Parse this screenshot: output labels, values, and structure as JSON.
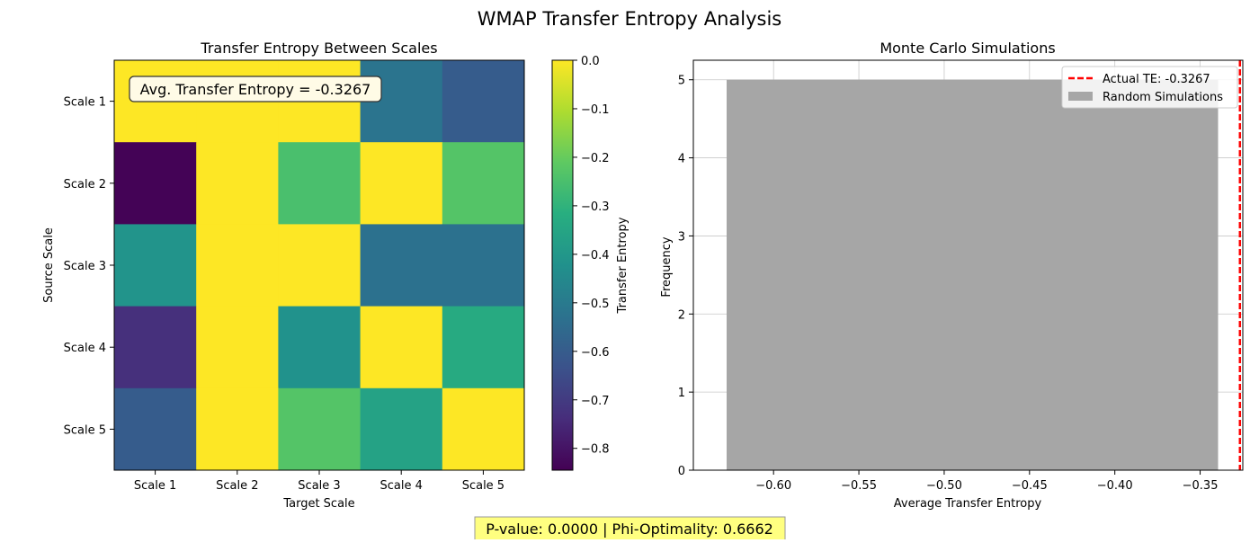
{
  "figure": {
    "suptitle": "WMAP Transfer Entropy Analysis",
    "footer": "P-value: 0.0000 | Phi-Optimality: 0.6662"
  },
  "colors": {
    "footer_box": "#ffff80",
    "hist_bar": "#a6a6a6",
    "actual_line": "#ff0000",
    "grid": "#b0b0b0"
  },
  "chart_data": [
    {
      "type": "heatmap",
      "title": "Transfer Entropy Between Scales",
      "xlabel": "Target Scale",
      "ylabel": "Source Scale",
      "x_categories": [
        "Scale 1",
        "Scale 2",
        "Scale 3",
        "Scale 4",
        "Scale 5"
      ],
      "y_categories": [
        "Scale 1",
        "Scale 2",
        "Scale 3",
        "Scale 4",
        "Scale 5"
      ],
      "values": [
        [
          0.0,
          0.0,
          0.0,
          -0.52,
          -0.6
        ],
        [
          -0.84,
          0.0,
          -0.25,
          0.0,
          -0.23
        ],
        [
          -0.41,
          0.0,
          0.0,
          -0.53,
          -0.53
        ],
        [
          -0.73,
          0.0,
          -0.42,
          0.0,
          -0.33
        ],
        [
          -0.6,
          0.0,
          -0.23,
          -0.36,
          0.0
        ]
      ],
      "colormap": "viridis",
      "colorbar": {
        "label": "Transfer Entropy",
        "range": [
          -0.845,
          0.0
        ],
        "ticks": [
          0.0,
          -0.1,
          -0.2,
          -0.3,
          -0.4,
          -0.5,
          -0.6,
          -0.7,
          -0.8
        ],
        "tick_labels": [
          "0.0",
          "−0.1",
          "−0.2",
          "−0.3",
          "−0.4",
          "−0.5",
          "−0.6",
          "−0.7",
          "−0.8"
        ]
      },
      "annotation": "Avg. Transfer Entropy = -0.3267"
    },
    {
      "type": "bar",
      "subtype": "histogram",
      "title": "Monte Carlo Simulations",
      "xlabel": "Average Transfer Entropy",
      "ylabel": "Frequency",
      "xlim": [
        -0.647,
        -0.325
      ],
      "ylim": [
        0,
        5.25
      ],
      "xticks": [
        -0.6,
        -0.55,
        -0.5,
        -0.45,
        -0.4,
        -0.35
      ],
      "xtick_labels": [
        "−0.60",
        "−0.55",
        "−0.50",
        "−0.45",
        "−0.40",
        "−0.35"
      ],
      "yticks": [
        0,
        1,
        2,
        3,
        4,
        5
      ],
      "ytick_labels": [
        "0",
        "1",
        "2",
        "3",
        "4",
        "5"
      ],
      "bins": [
        {
          "start": -0.6275,
          "end": -0.3395,
          "count": 5
        }
      ],
      "actual_value": -0.3267,
      "grid": true,
      "legend_position": "top-right",
      "legend": [
        {
          "label": "Actual TE: -0.3267",
          "kind": "dashed-line"
        },
        {
          "label": "Random Simulations",
          "kind": "patch"
        }
      ]
    }
  ]
}
